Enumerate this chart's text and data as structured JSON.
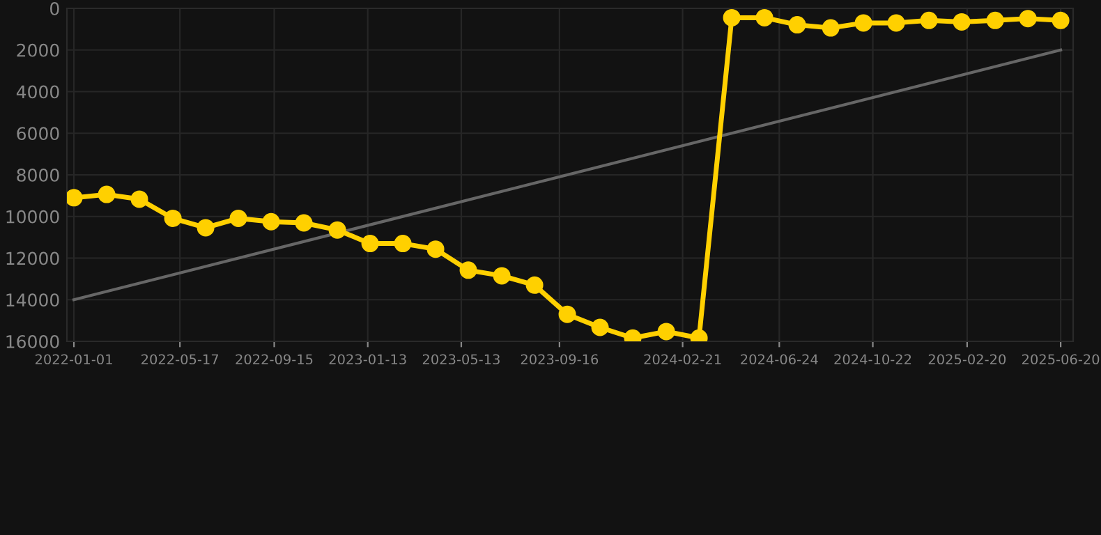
{
  "chart_data": {
    "type": "line",
    "x": [
      "2022-01-01",
      "2022-02-12",
      "2022-03-26",
      "2022-05-08",
      "2022-06-19",
      "2022-07-31",
      "2022-09-11",
      "2022-10-23",
      "2022-12-05",
      "2023-01-16",
      "2023-02-27",
      "2023-04-10",
      "2023-05-22",
      "2023-07-04",
      "2023-08-15",
      "2023-09-26",
      "2023-11-07",
      "2023-12-19",
      "2024-01-31",
      "2024-03-13",
      "2024-04-24",
      "2024-06-05",
      "2024-07-17",
      "2024-08-29",
      "2024-10-10",
      "2024-11-21",
      "2025-01-02",
      "2025-02-13",
      "2025-03-28",
      "2025-05-09",
      "2025-06-20"
    ],
    "series": [
      {
        "color": "#ffd000",
        "marker": "circle",
        "values": [
          9100,
          8940,
          9170,
          10090,
          10540,
          10090,
          10250,
          10310,
          10650,
          11300,
          11300,
          11570,
          12580,
          12850,
          13300,
          14700,
          15330,
          15840,
          15530,
          15840,
          450,
          450,
          790,
          940,
          700,
          700,
          580,
          650,
          580,
          490,
          580
        ]
      },
      {
        "color": "#666666",
        "marker": "none",
        "x": [
          "2022-01-01",
          "2025-06-20"
        ],
        "values": [
          14000,
          2000
        ]
      }
    ],
    "xlim": [
      "2021-12-23",
      "2025-07-06"
    ],
    "xticks": [
      "2022-01-01",
      "2022-05-17",
      "2022-09-15",
      "2023-01-13",
      "2023-05-13",
      "2023-09-16",
      "2024-02-21",
      "2024-06-24",
      "2024-10-22",
      "2025-02-20",
      "2025-06-20"
    ],
    "ylim": [
      16000,
      0
    ],
    "yticks": [
      0,
      2000,
      4000,
      6000,
      8000,
      10000,
      12000,
      14000,
      16000
    ],
    "grid": true,
    "line_style": "solid"
  }
}
